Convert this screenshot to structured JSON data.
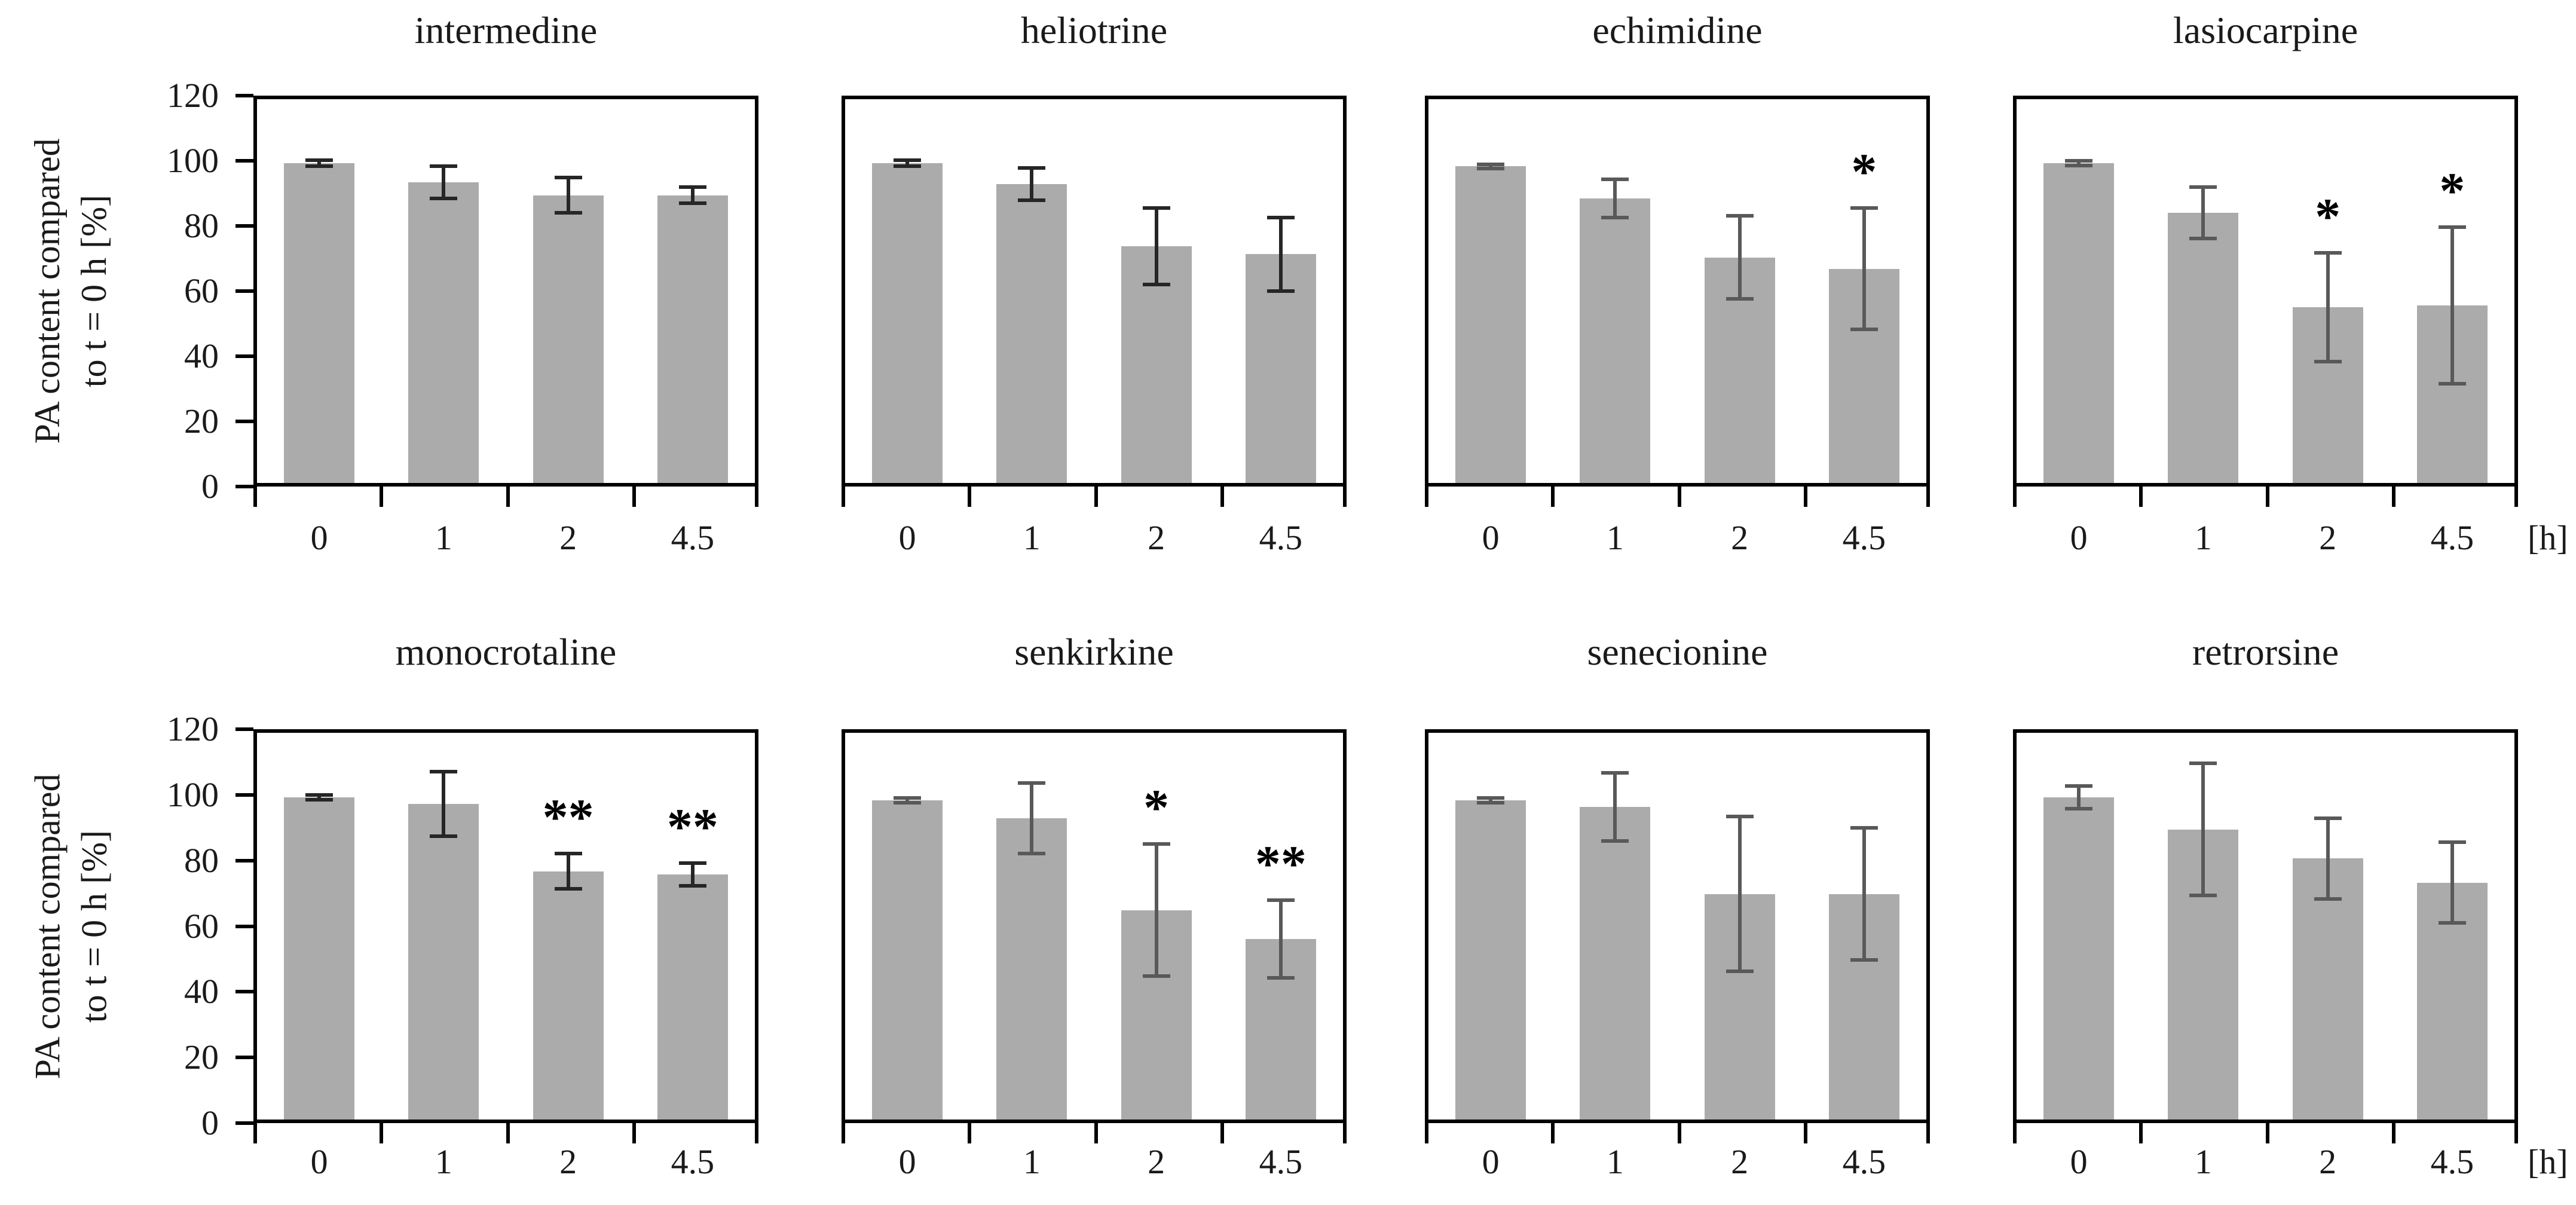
{
  "figure": {
    "y_axis": {
      "label_line1": "PA content compared",
      "label_line2": "to t = 0 h [%]",
      "ticks": [
        120,
        100,
        80,
        60,
        40,
        20,
        0
      ],
      "min": 0,
      "max": 120,
      "grid": false
    },
    "x_axis": {
      "categories": [
        "0",
        "1",
        "2",
        "4.5"
      ],
      "unit_label": "[h]"
    },
    "colors": {
      "bar": "#ababab",
      "plot_border": "#000000",
      "error_bar_black": "#262626",
      "error_bar_gray": "#595959",
      "significance": "#000000",
      "background": "#ffffff"
    },
    "legend": "none"
  },
  "chart_data": [
    {
      "type": "bar",
      "title": "intermedine",
      "row": 0,
      "col": 0,
      "categories": [
        "0",
        "1",
        "2",
        "4.5"
      ],
      "values": [
        100,
        94,
        90,
        90
      ],
      "errors": [
        1,
        5,
        5.5,
        2.5
      ],
      "significance": [
        "",
        "",
        "",
        ""
      ],
      "error_color": "#262626",
      "xlabel": "",
      "ylabel": "PA content compared to t = 0 h [%]",
      "ylim": [
        0,
        120
      ]
    },
    {
      "type": "bar",
      "title": "heliotrine",
      "row": 0,
      "col": 1,
      "categories": [
        "0",
        "1",
        "2",
        "4.5"
      ],
      "values": [
        100,
        93.5,
        74,
        71.5
      ],
      "errors": [
        1,
        5,
        12,
        11.5
      ],
      "significance": [
        "",
        "",
        "",
        ""
      ],
      "error_color": "#262626",
      "xlabel": "",
      "ylabel": "",
      "ylim": [
        0,
        120
      ]
    },
    {
      "type": "bar",
      "title": "echimidine",
      "row": 0,
      "col": 2,
      "categories": [
        "0",
        "1",
        "2",
        "4.5"
      ],
      "values": [
        99,
        89,
        70.5,
        67
      ],
      "errors": [
        0.7,
        6,
        13,
        19
      ],
      "significance": [
        "",
        "",
        "",
        "*"
      ],
      "error_color": "#595959",
      "xlabel": "",
      "ylabel": "",
      "ylim": [
        0,
        120
      ]
    },
    {
      "type": "bar",
      "title": "lasiocarpine",
      "row": 0,
      "col": 3,
      "categories": [
        "0",
        "1",
        "2",
        "4.5"
      ],
      "values": [
        100,
        84.5,
        55,
        55.5
      ],
      "errors": [
        0.7,
        8,
        17,
        24.5
      ],
      "significance": [
        "",
        "",
        "*",
        "*"
      ],
      "error_color": "#595959",
      "xlabel": "",
      "ylabel": "",
      "ylim": [
        0,
        120
      ]
    },
    {
      "type": "bar",
      "title": "monocrotaline",
      "row": 1,
      "col": 0,
      "categories": [
        "0",
        "1",
        "2",
        "4.5"
      ],
      "values": [
        100,
        98,
        77,
        76
      ],
      "errors": [
        0.7,
        10,
        5.5,
        3.5
      ],
      "significance": [
        "",
        "",
        "**",
        "**"
      ],
      "error_color": "#262626",
      "xlabel": "",
      "ylabel": "PA content compared to t = 0 h [%]",
      "ylim": [
        0,
        120
      ]
    },
    {
      "type": "bar",
      "title": "senkirkine",
      "row": 1,
      "col": 1,
      "categories": [
        "0",
        "1",
        "2",
        "4.5"
      ],
      "values": [
        99,
        93.5,
        65,
        56
      ],
      "errors": [
        0.7,
        11,
        20.5,
        12
      ],
      "significance": [
        "",
        "",
        "*",
        "**"
      ],
      "error_color": "#595959",
      "xlabel": "",
      "ylabel": "",
      "ylim": [
        0,
        120
      ]
    },
    {
      "type": "bar",
      "title": "senecionine",
      "row": 1,
      "col": 2,
      "categories": [
        "0",
        "1",
        "2",
        "4.5"
      ],
      "values": [
        99,
        97,
        70,
        70
      ],
      "errors": [
        0.7,
        10.5,
        24,
        20.5
      ],
      "significance": [
        "",
        "",
        "",
        ""
      ],
      "error_color": "#595959",
      "xlabel": "",
      "ylabel": "",
      "ylim": [
        0,
        120
      ]
    },
    {
      "type": "bar",
      "title": "retrorsine",
      "row": 1,
      "col": 3,
      "categories": [
        "0",
        "1",
        "2",
        "4.5"
      ],
      "values": [
        100,
        90,
        81,
        73.5
      ],
      "errors": [
        3.5,
        20.5,
        12.5,
        12.5
      ],
      "significance": [
        "",
        "",
        "",
        ""
      ],
      "error_color": "#595959",
      "xlabel": "",
      "ylabel": "",
      "ylim": [
        0,
        120
      ]
    }
  ]
}
